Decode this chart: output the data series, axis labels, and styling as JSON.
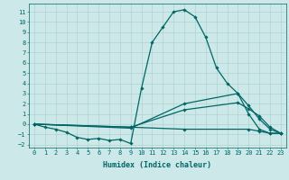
{
  "bg_color": "#cce8e8",
  "grid_color": "#aacccc",
  "line_color": "#006666",
  "line_width": 0.9,
  "marker": "D",
  "marker_size": 1.8,
  "xlabel": "Humidex (Indice chaleur)",
  "xlabel_fontsize": 6,
  "tick_fontsize": 5,
  "ylim": [
    -2.3,
    11.8
  ],
  "xlim": [
    -0.5,
    23.5
  ],
  "yticks": [
    -2,
    -1,
    0,
    1,
    2,
    3,
    4,
    5,
    6,
    7,
    8,
    9,
    10,
    11
  ],
  "xticks": [
    0,
    1,
    2,
    3,
    4,
    5,
    6,
    7,
    8,
    9,
    10,
    11,
    12,
    13,
    14,
    15,
    16,
    17,
    18,
    19,
    20,
    21,
    22,
    23
  ],
  "series": [
    {
      "x": [
        0,
        1,
        2,
        3,
        4,
        5,
        6,
        7,
        8,
        9,
        10,
        11,
        12,
        13,
        14,
        15,
        16,
        17,
        18,
        19,
        20,
        21,
        22,
        23
      ],
      "y": [
        0,
        -0.3,
        -0.5,
        -0.8,
        -1.3,
        -1.5,
        -1.4,
        -1.6,
        -1.5,
        -1.9,
        3.5,
        8.0,
        9.5,
        11.0,
        11.2,
        10.5,
        8.5,
        5.5,
        4.0,
        3.0,
        1.0,
        -0.5,
        -0.9,
        -0.9
      ]
    },
    {
      "x": [
        0,
        9,
        14,
        19,
        20,
        21,
        22,
        23
      ],
      "y": [
        0,
        -0.4,
        2.0,
        3.0,
        1.8,
        0.5,
        -0.5,
        -0.9
      ]
    },
    {
      "x": [
        0,
        9,
        14,
        19,
        20,
        21,
        22,
        23
      ],
      "y": [
        0,
        -0.3,
        1.4,
        2.1,
        1.5,
        0.8,
        -0.3,
        -0.9
      ]
    },
    {
      "x": [
        0,
        9,
        14,
        20,
        21,
        22,
        23
      ],
      "y": [
        0,
        -0.3,
        -0.5,
        -0.5,
        -0.7,
        -0.9,
        -0.9
      ]
    }
  ]
}
